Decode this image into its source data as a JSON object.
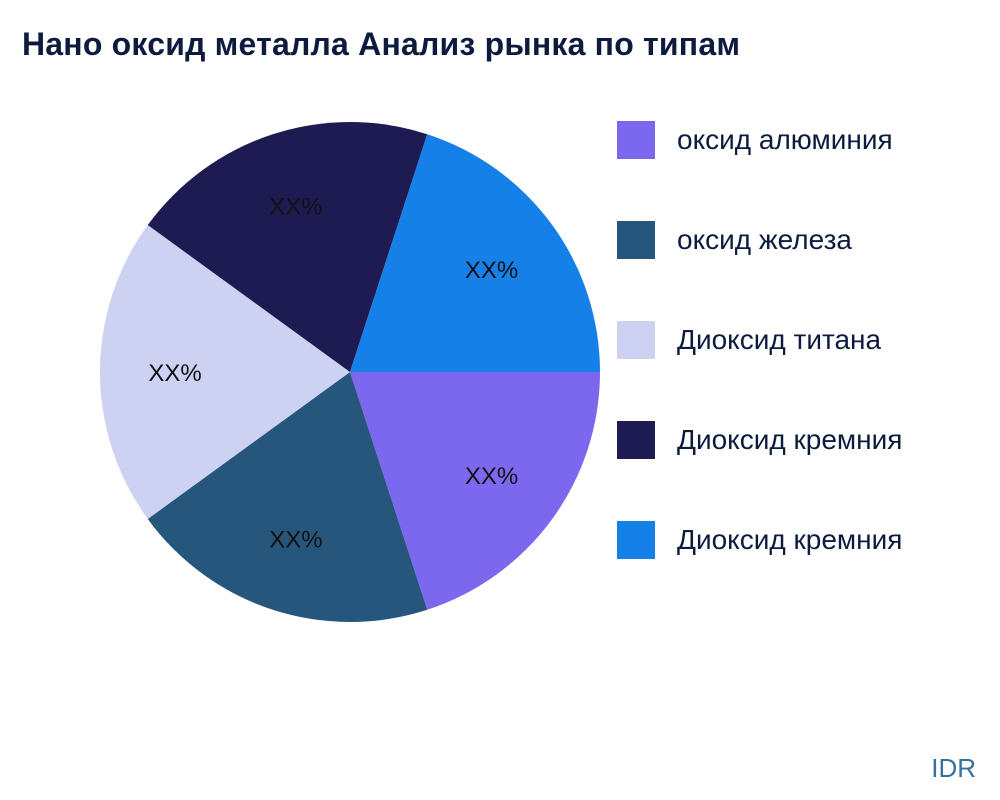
{
  "title": "Нано оксид металла Анализ рынка по типам",
  "watermark": "IDR",
  "chart_data": {
    "type": "pie",
    "title": "Нано оксид металла Анализ рынка по типам",
    "legend_position": "right",
    "start_angle_deg": 0,
    "direction": "clockwise",
    "labels_shown_as": "XX%",
    "series": [
      {
        "name": "оксид алюминия",
        "value": 20,
        "label": "XX%",
        "color": "#7B68EE"
      },
      {
        "name": "оксид железа",
        "value": 20,
        "label": "XX%",
        "color": "#27567D"
      },
      {
        "name": "Диоксид титана",
        "value": 20,
        "label": "XX%",
        "color": "#CDD1F2"
      },
      {
        "name": "Диоксид кремния",
        "value": 20,
        "label": "XX%",
        "color": "#1E1B52"
      },
      {
        "name": "Диоксид кремния",
        "value": 20,
        "label": "XX%",
        "color": "#1480E8"
      }
    ]
  }
}
